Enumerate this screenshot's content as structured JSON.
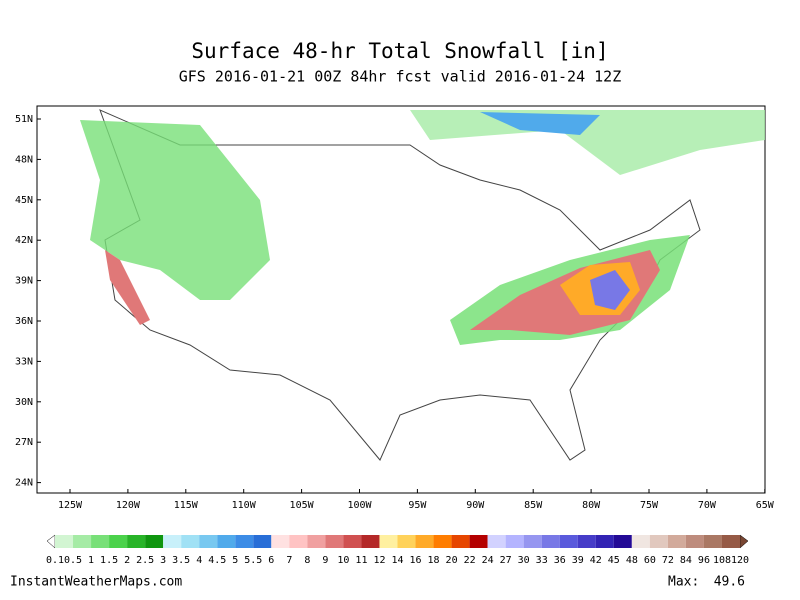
{
  "title": "Surface 48-hr Total Snowfall [in]",
  "subtitle": "GFS 2016-01-21 00Z 84hr fcst valid 2016-01-24 12Z",
  "lat_labels": [
    "51N",
    "48N",
    "45N",
    "42N",
    "39N",
    "36N",
    "33N",
    "30N",
    "27N",
    "24N"
  ],
  "lon_labels": [
    "125W",
    "120W",
    "115W",
    "110W",
    "105W",
    "100W",
    "95W",
    "90W",
    "85W",
    "80W",
    "75W",
    "70W",
    "65W"
  ],
  "colorbar": {
    "labels": [
      0.1,
      0.5,
      1,
      1.5,
      2,
      2.5,
      3,
      3.5,
      4,
      4.5,
      5,
      5.5,
      6,
      7,
      8,
      9,
      10,
      11,
      12,
      14,
      16,
      18,
      20,
      22,
      24,
      27,
      30,
      33,
      36,
      39,
      42,
      45,
      48,
      60,
      72,
      84,
      96,
      108,
      120
    ],
    "colors": [
      "#d2f5d2",
      "#a5eba5",
      "#78e078",
      "#4bd24b",
      "#28b428",
      "#0f960f",
      "#c8f0fa",
      "#a0e1f5",
      "#78c8f0",
      "#50aaeb",
      "#3c8ce6",
      "#286ed7",
      "#ffe1e1",
      "#ffc3c3",
      "#f0a0a0",
      "#e07878",
      "#d05050",
      "#b42828",
      "#fff0a0",
      "#ffd25a",
      "#ffaa28",
      "#ff7d00",
      "#e64600",
      "#b40000",
      "#d2d2ff",
      "#b4b4ff",
      "#9696f0",
      "#7878e6",
      "#5a5adc",
      "#463cc8",
      "#3223b4",
      "#230a96",
      "#f0e6e1",
      "#e1c8be",
      "#d2aa9b",
      "#be8c7d",
      "#aa7864",
      "#965a46"
    ],
    "under_color": "#ffffff",
    "over_color": "#784632"
  },
  "footer": "InstantWeatherMaps.com",
  "max_label": "Max:",
  "max_value": 49.6
}
